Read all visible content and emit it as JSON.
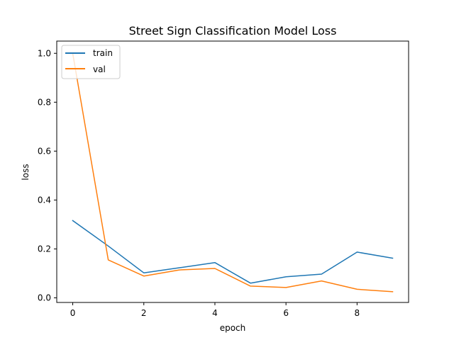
{
  "chart_data": {
    "type": "line",
    "title": "Street Sign Classification Model Loss",
    "xlabel": "epoch",
    "ylabel": "loss",
    "xlim": [
      -0.45,
      9.45
    ],
    "ylim": [
      -0.019,
      1.05
    ],
    "xticks": [
      0,
      2,
      4,
      6,
      8
    ],
    "xtick_labels": [
      "0",
      "2",
      "4",
      "6",
      "8"
    ],
    "yticks": [
      0.0,
      0.2,
      0.4,
      0.6,
      0.8,
      1.0
    ],
    "ytick_labels": [
      "0.0",
      "0.2",
      "0.4",
      "0.6",
      "0.8",
      "1.0"
    ],
    "grid": false,
    "legend_position": "top-left",
    "x": [
      0,
      1,
      2,
      3,
      4,
      5,
      6,
      7,
      8,
      9
    ],
    "series": [
      {
        "name": "train",
        "color": "#1f77b4",
        "values": [
          0.316,
          0.212,
          0.102,
          0.123,
          0.144,
          0.06,
          0.086,
          0.097,
          0.187,
          0.162
        ]
      },
      {
        "name": "val",
        "color": "#ff7f0e",
        "values": [
          1.0,
          0.155,
          0.089,
          0.114,
          0.12,
          0.048,
          0.042,
          0.069,
          0.035,
          0.025
        ]
      }
    ]
  }
}
